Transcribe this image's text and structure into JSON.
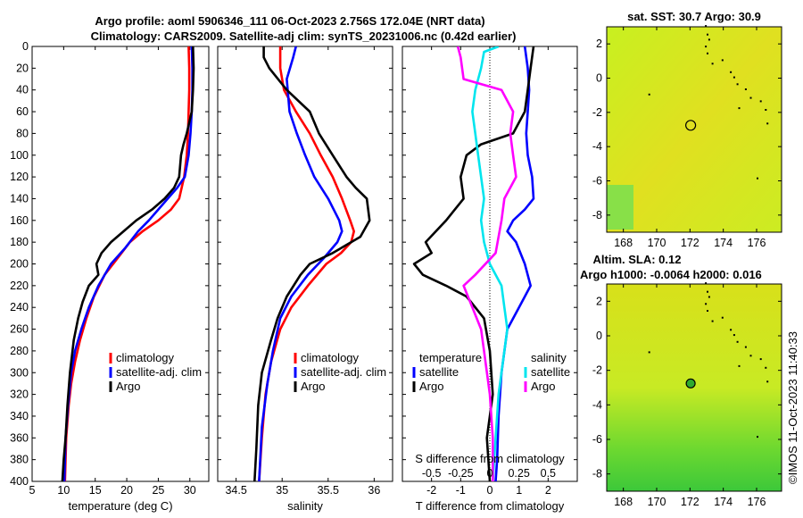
{
  "title_line1": "Argo profile: aoml 5906346_111 06-Oct-2023 2.756S 172.04E (NRT data)",
  "title_line2": "Climatology: CARS2009. Satellite-adj clim: synTS_20231006.nc (0.42d earlier)",
  "colors": {
    "climatology": "#ff0000",
    "satellite": "#0000ff",
    "argo": "#000000",
    "sal_satellite": "#00e5ee",
    "sal_argo": "#ff00ff"
  },
  "chart_data": [
    {
      "type": "line",
      "id": "temperature",
      "xlabel": "temperature (deg C)",
      "ylabel": "",
      "xlim": [
        5,
        33
      ],
      "ylim": [
        400,
        0
      ],
      "xticks": [
        5,
        10,
        15,
        20,
        25,
        30
      ],
      "yticks": [
        0,
        20,
        40,
        60,
        80,
        100,
        120,
        140,
        160,
        180,
        200,
        220,
        240,
        260,
        280,
        300,
        320,
        340,
        360,
        380,
        400
      ],
      "legend": [
        "climatology",
        "satellite-adj. clim",
        "Argo"
      ],
      "series": [
        {
          "name": "climatology",
          "color": "#ff0000",
          "x": [
            29.8,
            29.9,
            29.9,
            29.8,
            29.7,
            29.5,
            29.1,
            28.3,
            27.0,
            25.0,
            22.5,
            20.5,
            18.5,
            16.5,
            14.8,
            13.6,
            12.6,
            11.8,
            11.2,
            10.8,
            10.4,
            10.2
          ],
          "y": [
            0,
            20,
            40,
            60,
            80,
            100,
            120,
            140,
            150,
            160,
            170,
            180,
            195,
            210,
            230,
            250,
            270,
            290,
            310,
            330,
            360,
            400
          ]
        },
        {
          "name": "satellite-adj. clim",
          "color": "#0000ff",
          "x": [
            30.3,
            30.4,
            30.4,
            30.3,
            30.1,
            29.8,
            29.2,
            28.0,
            26.5,
            25.0,
            23.5,
            21.8,
            19.8,
            17.5,
            15.5,
            14.0,
            12.8,
            11.8,
            11.2,
            10.7,
            10.3,
            10.1
          ],
          "y": [
            0,
            20,
            40,
            60,
            80,
            100,
            120,
            130,
            140,
            150,
            160,
            170,
            185,
            200,
            220,
            240,
            260,
            280,
            300,
            330,
            360,
            400
          ]
        },
        {
          "name": "Argo",
          "color": "#000000",
          "x": [
            30.5,
            30.6,
            30.5,
            30.3,
            29.5,
            29.0,
            28.6,
            28.3,
            27.5,
            26.0,
            24.0,
            21.5,
            19.5,
            17.5,
            16.0,
            15.2,
            15.5,
            14.0,
            13.0,
            12.3,
            11.6,
            11.0,
            10.6,
            10.3,
            10.0,
            9.8
          ],
          "y": [
            0,
            20,
            40,
            60,
            80,
            90,
            100,
            120,
            130,
            140,
            150,
            160,
            170,
            180,
            190,
            200,
            210,
            220,
            235,
            250,
            270,
            300,
            330,
            360,
            380,
            400
          ]
        }
      ]
    },
    {
      "type": "line",
      "id": "salinity",
      "xlabel": "salinity",
      "ylabel": "",
      "xlim": [
        34.3,
        36.2
      ],
      "ylim": [
        400,
        0
      ],
      "xticks": [
        34.5,
        35,
        35.5,
        36
      ],
      "legend": [
        "climatology",
        "satellite-adj. clim",
        "Argo"
      ],
      "series": [
        {
          "name": "climatology",
          "color": "#ff0000",
          "x": [
            34.98,
            34.98,
            35.02,
            35.15,
            35.3,
            35.42,
            35.55,
            35.65,
            35.74,
            35.78,
            35.75,
            35.64,
            35.48,
            35.28,
            35.1,
            34.98,
            34.88,
            34.82,
            34.78,
            34.75
          ],
          "y": [
            0,
            20,
            40,
            60,
            80,
            100,
            120,
            140,
            160,
            170,
            180,
            190,
            200,
            220,
            240,
            260,
            290,
            320,
            360,
            400
          ]
        },
        {
          "name": "satellite-adj. clim",
          "color": "#0000ff",
          "x": [
            35.15,
            35.12,
            35.05,
            35.08,
            35.16,
            35.25,
            35.35,
            35.5,
            35.62,
            35.65,
            35.6,
            35.45,
            35.28,
            35.1,
            34.98,
            34.9,
            34.84,
            34.78,
            34.75
          ],
          "y": [
            0,
            10,
            30,
            60,
            80,
            100,
            120,
            140,
            160,
            170,
            180,
            195,
            210,
            230,
            250,
            280,
            310,
            350,
            400
          ]
        },
        {
          "name": "Argo",
          "color": "#000000",
          "x": [
            34.8,
            34.8,
            34.86,
            35.05,
            35.3,
            35.4,
            35.55,
            35.7,
            35.8,
            35.92,
            35.95,
            35.85,
            35.55,
            35.3,
            35.2,
            35.05,
            34.95,
            34.88,
            34.78,
            34.74,
            34.72,
            34.7
          ],
          "y": [
            0,
            10,
            20,
            40,
            60,
            80,
            100,
            120,
            130,
            140,
            160,
            175,
            190,
            200,
            210,
            230,
            250,
            270,
            300,
            330,
            370,
            400
          ]
        }
      ]
    },
    {
      "type": "line",
      "id": "difference",
      "xlabel": "T difference from climatology",
      "xlabel_top": "S difference from climatology",
      "ylabel": "",
      "xlim": [
        -3,
        3
      ],
      "ylim": [
        400,
        0
      ],
      "xticks": [
        -2,
        -1,
        0,
        1,
        2
      ],
      "xtick_labels_S": [
        "-0.5",
        "-0.25",
        "0",
        "0.25",
        "0.5"
      ],
      "legend_temperature_title": "temperature",
      "legend_salinity_title": "salinity",
      "legend_temperature": [
        "satellite",
        "Argo"
      ],
      "legend_salinity": [
        "satellite",
        "Argo"
      ],
      "series": [
        {
          "name": "temperature satellite",
          "color": "#0000ff",
          "x": [
            1.2,
            1.3,
            1.35,
            1.3,
            1.25,
            1.3,
            1.45,
            1.5,
            1.2,
            0.8,
            0.6,
            0.9,
            1.2,
            1.4,
            1.0,
            0.6,
            0.4,
            0.3,
            0.25,
            0.2
          ],
          "y": [
            0,
            20,
            40,
            60,
            80,
            100,
            120,
            140,
            150,
            160,
            170,
            180,
            200,
            220,
            240,
            260,
            300,
            340,
            380,
            400
          ]
        },
        {
          "name": "temperature Argo",
          "color": "#000000",
          "x": [
            1.5,
            1.4,
            1.3,
            1.2,
            0.8,
            -0.3,
            -0.8,
            -1.0,
            -0.9,
            -1.5,
            -2.2,
            -2.0,
            -2.6,
            -2.3,
            -1.5,
            -0.8,
            -0.2,
            0.0,
            0.1,
            -0.1,
            0.0
          ],
          "y": [
            0,
            20,
            40,
            60,
            80,
            90,
            100,
            120,
            140,
            160,
            180,
            190,
            200,
            210,
            220,
            230,
            250,
            280,
            320,
            360,
            400
          ]
        },
        {
          "name": "salinity satellite",
          "color": "#00e5ee",
          "x": [
            0.3,
            -0.2,
            -0.3,
            -0.5,
            -0.6,
            -0.5,
            -0.4,
            -0.3,
            -0.2,
            -0.3,
            -0.2,
            0.0,
            0.4,
            0.5,
            0.6,
            0.5,
            0.3,
            0.2,
            0.1
          ],
          "y": [
            0,
            5,
            20,
            40,
            60,
            80,
            100,
            120,
            140,
            160,
            180,
            200,
            220,
            240,
            260,
            280,
            320,
            360,
            400
          ]
        },
        {
          "name": "salinity Argo",
          "color": "#ff00ff",
          "x": [
            -1.1,
            -1.0,
            -0.9,
            0.4,
            0.8,
            0.7,
            0.8,
            0.9,
            0.5,
            0.4,
            0.2,
            -0.5,
            -0.9,
            -0.6,
            -0.3,
            -0.2,
            0.0,
            0.1,
            0.1
          ],
          "y": [
            0,
            10,
            30,
            40,
            60,
            80,
            100,
            120,
            140,
            160,
            190,
            210,
            220,
            240,
            260,
            280,
            320,
            360,
            400
          ]
        }
      ]
    },
    {
      "type": "heatmap",
      "id": "sst_map",
      "title": "sat. SST: 30.7  Argo: 30.9",
      "xticks": [
        168,
        170,
        172,
        174,
        176
      ],
      "yticks": [
        2,
        0,
        -2,
        -4,
        -6,
        -8
      ],
      "xlim": [
        167,
        177.5
      ],
      "ylim": [
        -9,
        3
      ],
      "argo_lon": 172.04,
      "argo_lat": -2.756
    },
    {
      "type": "heatmap",
      "id": "sla_map",
      "title_line1": "Altim. SLA: 0.12",
      "title_line2": "Argo h1000: -0.0064 h2000: 0.016",
      "xticks": [
        168,
        170,
        172,
        174,
        176
      ],
      "yticks": [
        2,
        0,
        -2,
        -4,
        -6,
        -8
      ],
      "xlim": [
        167,
        177.5
      ],
      "ylim": [
        -9,
        3
      ],
      "argo_lon": 172.04,
      "argo_lat": -2.756
    }
  ],
  "credit": "©IMOS 11-Oct-2023 11:40:33"
}
